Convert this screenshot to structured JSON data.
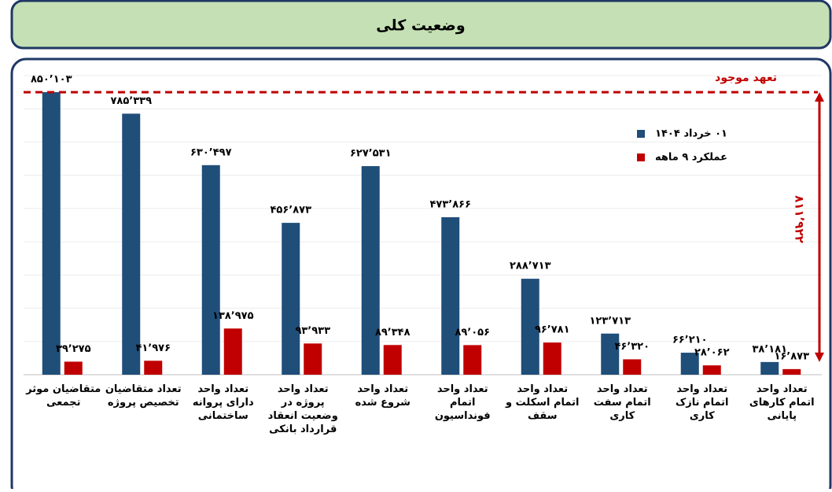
{
  "header": {
    "title": "وضعیت کلی"
  },
  "chart_data": {
    "type": "bar",
    "categories": [
      "متقاضیان موثر تجمعی",
      "تعداد متقاضیان تخصیص پروژه",
      "تعداد واحد دارای پروانه ساختمانی",
      "تعداد واحد پروژه در وضعیت انعقاد قرارداد بانکی",
      "تعداد واحد شروع شده",
      "تعداد واحد اتمام فونداسیون",
      "تعداد واحد اتمام اسکلت و سقف",
      "تعداد واحد اتمام سفت کاری",
      "تعداد واحد اتمام نازک کاری",
      "تعداد واحد اتمام کارهای پایانی"
    ],
    "series": [
      {
        "name": "۰۱ خرداد ۱۴۰۴",
        "color": "#1f4e79",
        "values": [
          850103,
          785339,
          630497,
          456873,
          627531,
          473866,
          288713,
          123713,
          66210,
          38181
        ],
        "value_labels": [
          "۸۵۰٬۱۰۳",
          "۷۸۵٬۳۳۹",
          "۶۳۰٬۴۹۷",
          "۴۵۶٬۸۷۳",
          "۶۲۷٬۵۳۱",
          "۴۷۳٬۸۶۶",
          "۲۸۸٬۷۱۳",
          "۱۲۳٬۷۱۳",
          "۶۶٬۲۱۰",
          "۳۸٬۱۸۱"
        ]
      },
      {
        "name": "عملکرد ۹ ماهه",
        "color": "#c00000",
        "values": [
          39275,
          41976,
          138975,
          93933,
          89348,
          89056,
          96781,
          46320,
          28062,
          16873
        ],
        "value_labels": [
          "۳۹٬۲۷۵",
          "۴۱٬۹۷۶",
          "۱۳۸٬۹۷۵",
          "۹۳٬۹۳۳",
          "۸۹٬۳۴۸",
          "۸۹٬۰۵۶",
          "۹۶٬۷۸۱",
          "۴۶٬۳۲۰",
          "۲۸٬۰۶۲",
          "۱۶٬۸۷۳"
        ]
      }
    ],
    "reference": {
      "label": "تعهد موجود",
      "value": 850103,
      "color": "#c00000"
    },
    "gap": {
      "label": "۸۱۱٬۹۲۲",
      "from": 38181,
      "to": 850103,
      "value": 811922
    },
    "ylim": [
      0,
      900000
    ],
    "yticks": [
      0,
      100000,
      200000,
      300000,
      400000,
      500000,
      600000,
      700000,
      800000,
      900000
    ],
    "grid": true,
    "legend": "top-right"
  }
}
